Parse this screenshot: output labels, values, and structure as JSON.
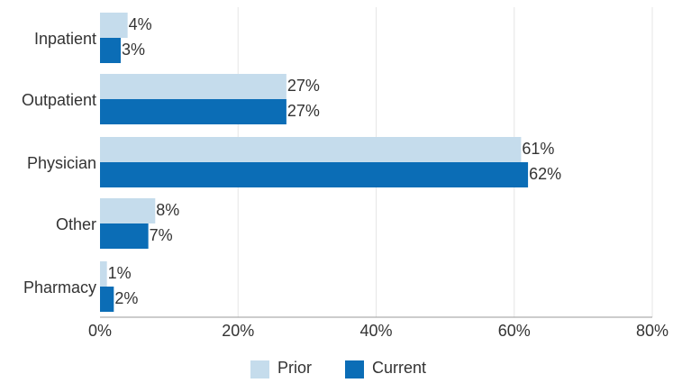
{
  "chart_data": {
    "type": "bar",
    "orientation": "horizontal",
    "categories": [
      "Inpatient",
      "Outpatient",
      "Physician",
      "Other",
      "Pharmacy"
    ],
    "series": [
      {
        "name": "Prior",
        "values": [
          4,
          27,
          61,
          8,
          1
        ],
        "labels": [
          "4%",
          "27%",
          "61%",
          "8%",
          "1%"
        ],
        "color": "#c5dcec"
      },
      {
        "name": "Current",
        "values": [
          3,
          27,
          62,
          7,
          2
        ],
        "labels": [
          "3%",
          "27%",
          "62%",
          "7%",
          "2%"
        ],
        "color": "#0b6db6"
      }
    ],
    "xlim": [
      0,
      80
    ],
    "xticks": [
      0,
      20,
      40,
      60,
      80
    ],
    "xtick_labels": [
      "0%",
      "20%",
      "40%",
      "60%",
      "80%"
    ],
    "grid": true,
    "legend_position": "bottom"
  }
}
